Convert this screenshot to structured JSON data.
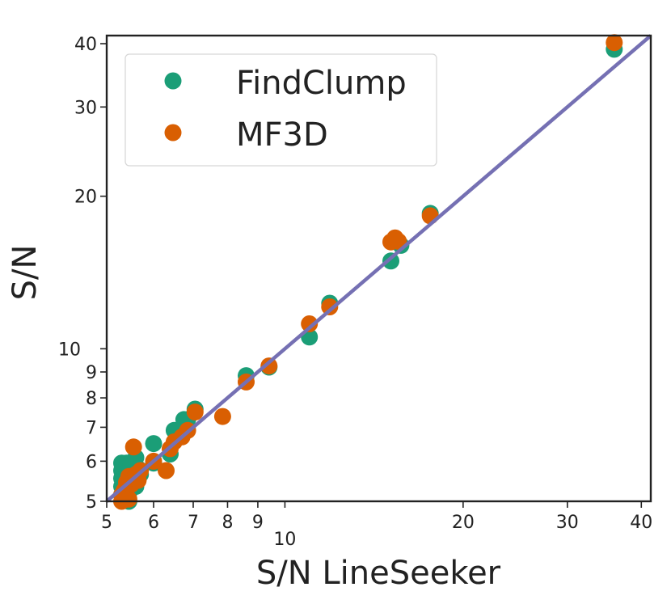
{
  "chart_data": {
    "type": "scatter",
    "title": "",
    "xlabel": "S/N LineSeeker",
    "ylabel": "S/N",
    "xscale": "log",
    "yscale": "log",
    "xlim": [
      5,
      41.5
    ],
    "ylim": [
      5,
      41.5
    ],
    "x_ticks": [
      5,
      6,
      7,
      8,
      9,
      10,
      20,
      30,
      40
    ],
    "x_tick_labels": [
      "5",
      "6",
      "7",
      "8",
      "9",
      "10",
      "20",
      "30",
      "40"
    ],
    "y_ticks": [
      5,
      6,
      7,
      8,
      9,
      10,
      20,
      30,
      40
    ],
    "y_tick_labels": [
      "5",
      "6",
      "7",
      "8",
      "9",
      "10",
      "20",
      "30",
      "40"
    ],
    "grid": false,
    "legend": {
      "position": "top-left"
    },
    "reference_line": {
      "type": "y=x",
      "color": "#7570b3"
    },
    "series": [
      {
        "name": "FindClump",
        "color": "#1b9e77",
        "points": [
          [
            5.3,
            5.95
          ],
          [
            5.3,
            5.75
          ],
          [
            5.3,
            5.55
          ],
          [
            5.3,
            5.35
          ],
          [
            5.3,
            5.15
          ],
          [
            5.4,
            5.95
          ],
          [
            5.4,
            5.7
          ],
          [
            5.4,
            5.45
          ],
          [
            5.45,
            5.2
          ],
          [
            5.45,
            5.0
          ],
          [
            5.5,
            5.9
          ],
          [
            5.55,
            5.6
          ],
          [
            5.6,
            5.35
          ],
          [
            5.6,
            6.1
          ],
          [
            5.65,
            5.8
          ],
          [
            5.7,
            5.65
          ],
          [
            6.0,
            6.5
          ],
          [
            6.0,
            5.95
          ],
          [
            6.4,
            6.2
          ],
          [
            6.5,
            6.9
          ],
          [
            6.75,
            7.25
          ],
          [
            6.85,
            7.25
          ],
          [
            7.05,
            7.6
          ],
          [
            8.6,
            8.85
          ],
          [
            9.4,
            9.2
          ],
          [
            11.0,
            10.55
          ],
          [
            11.9,
            12.3
          ],
          [
            15.1,
            14.9
          ],
          [
            15.7,
            16.0
          ],
          [
            17.6,
            18.5
          ],
          [
            36.0,
            39.0
          ]
        ]
      },
      {
        "name": "MF3D",
        "color": "#d95f02",
        "points": [
          [
            5.3,
            5.0
          ],
          [
            5.3,
            5.15
          ],
          [
            5.35,
            5.25
          ],
          [
            5.4,
            5.3
          ],
          [
            5.4,
            5.45
          ],
          [
            5.45,
            5.05
          ],
          [
            5.45,
            5.6
          ],
          [
            5.5,
            5.4
          ],
          [
            5.5,
            5.5
          ],
          [
            5.55,
            5.55
          ],
          [
            5.55,
            6.4
          ],
          [
            5.6,
            5.65
          ],
          [
            5.65,
            5.5
          ],
          [
            5.7,
            5.75
          ],
          [
            6.0,
            6.0
          ],
          [
            6.3,
            5.75
          ],
          [
            6.4,
            6.35
          ],
          [
            6.5,
            6.55
          ],
          [
            6.7,
            6.7
          ],
          [
            6.85,
            6.9
          ],
          [
            7.05,
            7.5
          ],
          [
            7.85,
            7.35
          ],
          [
            8.6,
            8.6
          ],
          [
            9.4,
            9.25
          ],
          [
            11.0,
            11.2
          ],
          [
            11.9,
            12.1
          ],
          [
            15.1,
            16.25
          ],
          [
            15.35,
            16.55
          ],
          [
            15.55,
            16.3
          ],
          [
            17.6,
            18.3
          ],
          [
            36.0,
            40.2
          ]
        ]
      }
    ]
  }
}
